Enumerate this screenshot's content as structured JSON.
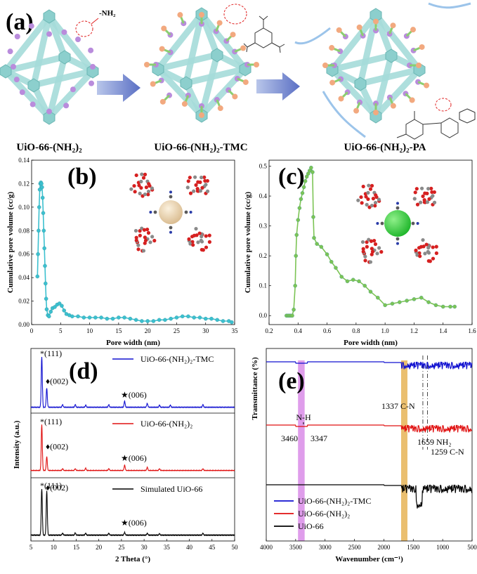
{
  "panel_a": {
    "letter": "(a)",
    "amine_label": "-NH₂",
    "structures": [
      {
        "name": "UiO-66-(NH₂)₂"
      },
      {
        "name": "UiO-66-(NH₂)₂-TMC"
      },
      {
        "name": "UiO-66-(NH₂)₂-PA"
      }
    ]
  },
  "chart_data": [
    {
      "panel": "(b)",
      "type": "line",
      "xlabel": "Pore width (nm)",
      "ylabel": "Cumulative pore volume (cc/g)",
      "xlim": [
        0,
        35
      ],
      "ylim": [
        0,
        0.14
      ],
      "xticks": [
        0,
        5,
        10,
        15,
        20,
        25,
        30,
        35
      ],
      "yticks": [
        0.0,
        0.02,
        0.04,
        0.06,
        0.08,
        0.1,
        0.12,
        0.14
      ],
      "color": "#3cc0cf",
      "series": [
        {
          "points": [
            [
              1.0,
              0.041
            ],
            [
              1.1,
              0.06
            ],
            [
              1.2,
              0.08
            ],
            [
              1.3,
              0.1
            ],
            [
              1.4,
              0.115
            ],
            [
              1.5,
              0.12
            ],
            [
              1.6,
              0.121
            ],
            [
              1.7,
              0.12
            ],
            [
              1.8,
              0.117
            ],
            [
              1.9,
              0.108
            ],
            [
              2.0,
              0.095
            ],
            [
              2.1,
              0.08
            ],
            [
              2.2,
              0.065
            ],
            [
              2.3,
              0.05
            ],
            [
              2.4,
              0.035
            ],
            [
              2.5,
              0.022
            ],
            [
              2.6,
              0.013
            ],
            [
              2.8,
              0.008
            ],
            [
              3.0,
              0.007
            ],
            [
              3.3,
              0.011
            ],
            [
              3.6,
              0.014
            ],
            [
              4.0,
              0.015
            ],
            [
              4.4,
              0.017
            ],
            [
              4.8,
              0.018
            ],
            [
              5.2,
              0.016
            ],
            [
              5.6,
              0.012
            ],
            [
              6.0,
              0.009
            ],
            [
              6.5,
              0.008
            ],
            [
              7,
              0.007
            ],
            [
              8,
              0.007
            ],
            [
              9,
              0.006
            ],
            [
              10,
              0.006
            ],
            [
              11,
              0.006
            ],
            [
              12,
              0.006
            ],
            [
              13,
              0.005
            ],
            [
              14,
              0.005
            ],
            [
              15,
              0.006
            ],
            [
              16,
              0.006
            ],
            [
              17,
              0.005
            ],
            [
              18,
              0.004
            ],
            [
              19,
              0.003
            ],
            [
              20,
              0.003
            ],
            [
              21,
              0.003
            ],
            [
              22,
              0.004
            ],
            [
              23,
              0.004
            ],
            [
              24,
              0.005
            ],
            [
              25,
              0.006
            ],
            [
              26,
              0.007
            ],
            [
              27,
              0.007
            ],
            [
              28,
              0.006
            ],
            [
              29,
              0.006
            ],
            [
              30,
              0.005
            ],
            [
              31,
              0.005
            ],
            [
              32,
              0.004
            ],
            [
              33,
              0.003
            ],
            [
              34,
              0.003
            ],
            [
              34.5,
              0.002
            ]
          ]
        }
      ]
    },
    {
      "panel": "(c)",
      "type": "line",
      "xlabel": "Pore width (nm)",
      "ylabel": "Cumulative pore volume (cc/g)",
      "xlim": [
        0.2,
        1.6
      ],
      "ylim": [
        -0.03,
        0.52
      ],
      "xticks": [
        0.2,
        0.4,
        0.6,
        0.8,
        1.0,
        1.2,
        1.4,
        1.6
      ],
      "yticks": [
        0.0,
        0.1,
        0.2,
        0.3,
        0.4,
        0.5
      ],
      "color": "#7cc455",
      "series": [
        {
          "points": [
            [
              0.32,
              0.0
            ],
            [
              0.33,
              0.0
            ],
            [
              0.34,
              0.0
            ],
            [
              0.35,
              0.0
            ],
            [
              0.36,
              0.0
            ],
            [
              0.37,
              0.02
            ],
            [
              0.38,
              0.1
            ],
            [
              0.385,
              0.2
            ],
            [
              0.39,
              0.27
            ],
            [
              0.4,
              0.32
            ],
            [
              0.41,
              0.36
            ],
            [
              0.42,
              0.39
            ],
            [
              0.43,
              0.41
            ],
            [
              0.44,
              0.43
            ],
            [
              0.45,
              0.45
            ],
            [
              0.46,
              0.465
            ],
            [
              0.47,
              0.475
            ],
            [
              0.48,
              0.485
            ],
            [
              0.49,
              0.495
            ],
            [
              0.5,
              0.48
            ],
            [
              0.505,
              0.33
            ],
            [
              0.51,
              0.26
            ],
            [
              0.53,
              0.24
            ],
            [
              0.56,
              0.23
            ],
            [
              0.6,
              0.205
            ],
            [
              0.63,
              0.18
            ],
            [
              0.66,
              0.16
            ],
            [
              0.7,
              0.13
            ],
            [
              0.74,
              0.115
            ],
            [
              0.78,
              0.12
            ],
            [
              0.82,
              0.115
            ],
            [
              0.86,
              0.1
            ],
            [
              0.9,
              0.08
            ],
            [
              0.95,
              0.06
            ],
            [
              1.0,
              0.035
            ],
            [
              1.05,
              0.04
            ],
            [
              1.1,
              0.045
            ],
            [
              1.15,
              0.05
            ],
            [
              1.2,
              0.055
            ],
            [
              1.25,
              0.06
            ],
            [
              1.3,
              0.045
            ],
            [
              1.35,
              0.035
            ],
            [
              1.4,
              0.03
            ],
            [
              1.45,
              0.03
            ],
            [
              1.48,
              0.03
            ]
          ]
        }
      ]
    },
    {
      "panel": "(d)",
      "type": "line",
      "xlabel": "2 Theta (°)",
      "ylabel": "Intensity (a.u.)",
      "xlim": [
        5,
        50
      ],
      "xticks": [
        5,
        10,
        15,
        20,
        25,
        30,
        35,
        40,
        45,
        50
      ],
      "series": [
        {
          "name": "UiO-66-(NH₂)₂-TMC",
          "color": "#1010d0",
          "peaks": [
            [
              7.4,
              1.0
            ],
            [
              8.5,
              0.38
            ],
            [
              12.0,
              0.05
            ],
            [
              14.8,
              0.05
            ],
            [
              17.1,
              0.04
            ],
            [
              22.2,
              0.05
            ],
            [
              25.7,
              0.12
            ],
            [
              30.7,
              0.08
            ],
            [
              33.4,
              0.04
            ],
            [
              35.8,
              0.04
            ],
            [
              43.0,
              0.05
            ]
          ]
        },
        {
          "name": "UiO-66-(NH₂)₂",
          "color": "#e01010",
          "peaks": [
            [
              7.4,
              1.0
            ],
            [
              8.5,
              0.3
            ],
            [
              12.0,
              0.04
            ],
            [
              14.8,
              0.04
            ],
            [
              17.1,
              0.05
            ],
            [
              22.2,
              0.04
            ],
            [
              25.7,
              0.12
            ],
            [
              30.7,
              0.07
            ],
            [
              33.4,
              0.04
            ],
            [
              43.0,
              0.04
            ]
          ]
        },
        {
          "name": "Simulated UiO-66",
          "color": "#000000",
          "peaks": [
            [
              7.4,
              1.0
            ],
            [
              8.5,
              0.95
            ],
            [
              12.0,
              0.04
            ],
            [
              14.8,
              0.05
            ],
            [
              17.1,
              0.04
            ],
            [
              22.2,
              0.04
            ],
            [
              25.7,
              0.06
            ],
            [
              30.7,
              0.04
            ],
            [
              33.4,
              0.03
            ],
            [
              43.0,
              0.04
            ]
          ]
        }
      ],
      "annotations": [
        "*(111)",
        "♦(002)",
        "★(006)"
      ]
    },
    {
      "panel": "(e)",
      "type": "line",
      "xlabel": "Wavenumber (cm⁻¹)",
      "ylabel": "Transmittance (%)",
      "xlim": [
        4000,
        500
      ],
      "xticks": [
        4000,
        3500,
        3000,
        2500,
        2000,
        1500,
        1000,
        500
      ],
      "series": [
        {
          "name": "UiO-66-(NH₂)₂-TMC",
          "color": "#1010d0"
        },
        {
          "name": "UiO-66-(NH₂)₂",
          "color": "#e01010"
        },
        {
          "name": "UiO-66",
          "color": "#000000"
        }
      ],
      "bands": [
        {
          "label": "N-H",
          "from": 3460,
          "to": 3347,
          "color": "#d98ce8"
        },
        {
          "label": "NH₂",
          "at": 1659,
          "color": "#e8b860"
        }
      ],
      "annotations": [
        "N-H",
        "3460",
        "3347",
        "1659 NH₂",
        "1337 C-N",
        "1259 C-N"
      ]
    }
  ]
}
